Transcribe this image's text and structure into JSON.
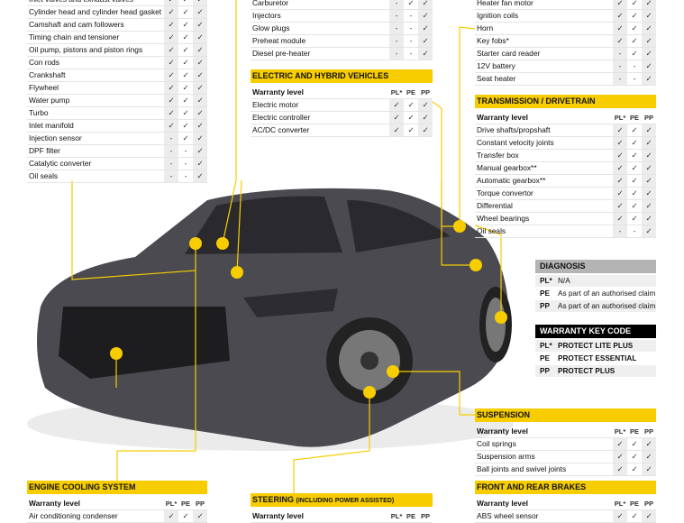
{
  "columns": [
    "PL*",
    "PE",
    "PP"
  ],
  "warranty_label": "Warranty level",
  "engine": {
    "rows": [
      [
        "Inlet valves and exhaust valves",
        "✓",
        "✓",
        "✓"
      ],
      [
        "Cylinder head and cylinder head gasket",
        "✓",
        "✓",
        "✓"
      ],
      [
        "Camshaft and cam followers",
        "✓",
        "✓",
        "✓"
      ],
      [
        "Timing chain and tensioner",
        "✓",
        "✓",
        "✓"
      ],
      [
        "Oil pump, pistons and piston rings",
        "✓",
        "✓",
        "✓"
      ],
      [
        "Con rods",
        "✓",
        "✓",
        "✓"
      ],
      [
        "Crankshaft",
        "✓",
        "✓",
        "✓"
      ],
      [
        "Flywheel",
        "✓",
        "✓",
        "✓"
      ],
      [
        "Water pump",
        "✓",
        "✓",
        "✓"
      ],
      [
        "Turbo",
        "✓",
        "✓",
        "✓"
      ],
      [
        "Inlet manifold",
        "✓",
        "✓",
        "✓"
      ],
      [
        "Injection sensor",
        "-",
        "✓",
        "✓"
      ],
      [
        "DPF filter",
        "-",
        "-",
        "✓"
      ],
      [
        "Catalytic converter",
        "-",
        "-",
        "✓"
      ],
      [
        "Oil seals",
        "-",
        "-",
        "✓"
      ]
    ]
  },
  "fuel": {
    "rows": [
      [
        "Carburetor",
        "-",
        "✓",
        "✓"
      ],
      [
        "Injectors",
        "-",
        "-",
        "✓"
      ],
      [
        "Glow plugs",
        "-",
        "-",
        "✓"
      ],
      [
        "Preheat module",
        "-",
        "-",
        "✓"
      ],
      [
        "Diesel pre-heater",
        "-",
        "-",
        "✓"
      ]
    ]
  },
  "electric_hybrid": {
    "title": "ELECTRIC AND HYBRID VEHICLES",
    "rows": [
      [
        "Electric motor",
        "✓",
        "✓",
        "✓"
      ],
      [
        "Electric controller",
        "✓",
        "✓",
        "✓"
      ],
      [
        "AC/DC converter",
        "✓",
        "✓",
        "✓"
      ]
    ]
  },
  "electrical": {
    "rows": [
      [
        "Heater fan motor",
        "✓",
        "✓",
        "✓"
      ],
      [
        "Ignition coils",
        "✓",
        "✓",
        "✓"
      ],
      [
        "Horn",
        "✓",
        "✓",
        "✓"
      ],
      [
        "Key fobs*",
        "✓",
        "✓",
        "✓"
      ],
      [
        "Starter card reader",
        "-",
        "✓",
        "✓"
      ],
      [
        "12V battery",
        "-",
        "-",
        "✓"
      ],
      [
        "Seat heater",
        "-",
        "-",
        "✓"
      ]
    ]
  },
  "transmission": {
    "title": "TRANSMISSION / DRIVETRAIN",
    "rows": [
      [
        "Drive shafts/propshaft",
        "✓",
        "✓",
        "✓"
      ],
      [
        "Constant velocity joints",
        "✓",
        "✓",
        "✓"
      ],
      [
        "Transfer box",
        "✓",
        "✓",
        "✓"
      ],
      [
        "Manual gearbox**",
        "✓",
        "✓",
        "✓"
      ],
      [
        "Automatic gearbox**",
        "✓",
        "✓",
        "✓"
      ],
      [
        "Torque convertor",
        "✓",
        "✓",
        "✓"
      ],
      [
        "Differential",
        "✓",
        "✓",
        "✓"
      ],
      [
        "Wheel bearings",
        "✓",
        "✓",
        "✓"
      ],
      [
        "Oil seals",
        "-",
        "-",
        "✓"
      ]
    ]
  },
  "diagnosis": {
    "title": "DIAGNOSIS",
    "rows": [
      [
        "PL*",
        "N/A"
      ],
      [
        "PE",
        "As part of an authorised claim"
      ],
      [
        "PP",
        "As part of an authorised claim"
      ]
    ]
  },
  "key_code": {
    "title": "WARRANTY KEY CODE",
    "rows": [
      [
        "PL*",
        "PROTECT LITE PLUS"
      ],
      [
        "PE",
        "PROTECT ESSENTIAL"
      ],
      [
        "PP",
        "PROTECT PLUS"
      ]
    ]
  },
  "suspension": {
    "title": "SUSPENSION",
    "rows": [
      [
        "Coil springs",
        "✓",
        "✓",
        "✓"
      ],
      [
        "Suspension arms",
        "✓",
        "✓",
        "✓"
      ],
      [
        "Ball joints and swivel joints",
        "✓",
        "✓",
        "✓"
      ]
    ]
  },
  "brakes": {
    "title": "FRONT AND REAR BRAKES",
    "rows": [
      [
        "ABS wheel sensor",
        "✓",
        "✓",
        "✓"
      ]
    ]
  },
  "cooling": {
    "title": "ENGINE COOLING SYSTEM",
    "rows": [
      [
        "Air conditioning condenser",
        "✓",
        "✓",
        "✓"
      ]
    ]
  },
  "steering": {
    "title": "STEERING",
    "title_note": "(INCLUDING POWER ASSISTED)",
    "rows": []
  },
  "colors": {
    "accent": "#f7cd00",
    "car_body": "#4a4a50"
  }
}
